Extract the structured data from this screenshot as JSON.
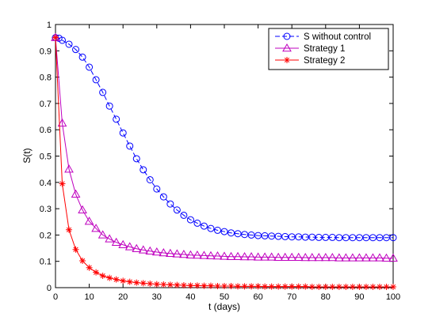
{
  "chart_data": {
    "type": "line",
    "xlabel": "t (days)",
    "ylabel": "S(t)",
    "xlim": [
      0,
      100
    ],
    "ylim": [
      0,
      1
    ],
    "xticks": [
      "0",
      "10",
      "20",
      "30",
      "40",
      "50",
      "60",
      "70",
      "80",
      "90",
      "100"
    ],
    "yticks": [
      "0",
      "0.1",
      "0.2",
      "0.3",
      "0.4",
      "0.5",
      "0.6",
      "0.7",
      "0.8",
      "0.9",
      "1"
    ],
    "grid": false,
    "legend_position": "top-right",
    "series": [
      {
        "name": "S without control",
        "color": "#0000ff",
        "line_style": "dashed",
        "marker": "circle",
        "x": [
          0,
          1,
          2,
          4,
          6,
          8,
          10,
          12,
          14,
          16,
          18,
          20,
          22,
          24,
          26,
          28,
          30,
          32,
          34,
          36,
          38,
          40,
          42,
          44,
          46,
          48,
          50,
          52,
          54,
          56,
          58,
          60,
          62,
          64,
          66,
          68,
          70,
          72,
          74,
          76,
          78,
          80,
          82,
          84,
          86,
          88,
          90,
          92,
          94,
          96,
          98,
          100
        ],
        "y": [
          0.95,
          0.948,
          0.94,
          0.925,
          0.905,
          0.876,
          0.838,
          0.79,
          0.742,
          0.69,
          0.64,
          0.588,
          0.538,
          0.49,
          0.448,
          0.41,
          0.375,
          0.345,
          0.318,
          0.295,
          0.275,
          0.258,
          0.245,
          0.234,
          0.225,
          0.218,
          0.213,
          0.208,
          0.205,
          0.202,
          0.2,
          0.198,
          0.197,
          0.196,
          0.195,
          0.194,
          0.193,
          0.193,
          0.192,
          0.192,
          0.191,
          0.191,
          0.191,
          0.19,
          0.19,
          0.19,
          0.19,
          0.19,
          0.19,
          0.19,
          0.19,
          0.19
        ]
      },
      {
        "name": "Strategy 1",
        "color": "#bf00bf",
        "line_style": "solid",
        "marker": "triangle",
        "x": [
          0,
          2,
          4,
          6,
          8,
          10,
          12,
          14,
          16,
          18,
          20,
          22,
          24,
          26,
          28,
          30,
          32,
          34,
          36,
          38,
          40,
          42,
          44,
          46,
          48,
          50,
          52,
          54,
          56,
          58,
          60,
          62,
          64,
          66,
          68,
          70,
          72,
          74,
          76,
          78,
          80,
          82,
          84,
          86,
          88,
          90,
          92,
          94,
          96,
          98,
          100
        ],
        "y": [
          0.95,
          0.625,
          0.45,
          0.355,
          0.295,
          0.252,
          0.225,
          0.2,
          0.185,
          0.172,
          0.163,
          0.155,
          0.148,
          0.143,
          0.139,
          0.135,
          0.132,
          0.13,
          0.128,
          0.126,
          0.124,
          0.123,
          0.122,
          0.121,
          0.12,
          0.119,
          0.118,
          0.118,
          0.117,
          0.117,
          0.116,
          0.116,
          0.116,
          0.115,
          0.115,
          0.115,
          0.115,
          0.114,
          0.114,
          0.114,
          0.114,
          0.114,
          0.113,
          0.113,
          0.113,
          0.113,
          0.113,
          0.113,
          0.113,
          0.112,
          0.112
        ]
      },
      {
        "name": "Strategy 2",
        "color": "#ff0000",
        "line_style": "solid",
        "marker": "star",
        "x": [
          0,
          2,
          4,
          6,
          8,
          10,
          12,
          14,
          16,
          18,
          20,
          22,
          24,
          26,
          28,
          30,
          32,
          34,
          36,
          38,
          40,
          42,
          44,
          46,
          48,
          50,
          52,
          54,
          56,
          58,
          60,
          62,
          64,
          66,
          68,
          70,
          72,
          74,
          76,
          78,
          80,
          82,
          84,
          86,
          88,
          90,
          92,
          94,
          96,
          98,
          100
        ],
        "y": [
          0.95,
          0.395,
          0.22,
          0.145,
          0.102,
          0.076,
          0.058,
          0.045,
          0.037,
          0.031,
          0.026,
          0.022,
          0.019,
          0.017,
          0.015,
          0.013,
          0.012,
          0.011,
          0.01,
          0.009,
          0.008,
          0.008,
          0.007,
          0.007,
          0.006,
          0.006,
          0.006,
          0.005,
          0.005,
          0.005,
          0.005,
          0.004,
          0.004,
          0.004,
          0.004,
          0.004,
          0.004,
          0.004,
          0.003,
          0.003,
          0.003,
          0.003,
          0.003,
          0.003,
          0.003,
          0.003,
          0.003,
          0.003,
          0.003,
          0.003,
          0.003
        ]
      }
    ]
  }
}
